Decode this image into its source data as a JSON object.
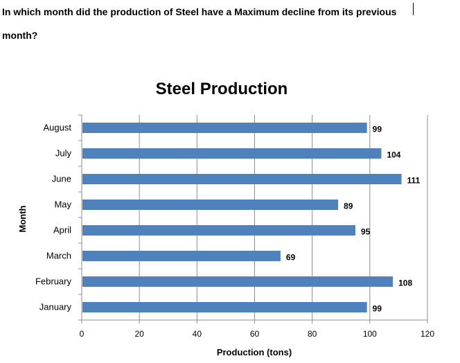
{
  "question": {
    "line1": "In which month did the production of Steel have a Maximum decline from its previous",
    "line2": "month?"
  },
  "chart_data": {
    "type": "bar",
    "orientation": "horizontal",
    "title": "Steel Production",
    "xlabel": "Production (tons)",
    "ylabel": "Month",
    "categories": [
      "January",
      "February",
      "March",
      "April",
      "May",
      "June",
      "July",
      "August"
    ],
    "values": [
      99,
      108,
      69,
      95,
      89,
      111,
      104,
      99
    ],
    "xlim": [
      0,
      120
    ],
    "xticks": [
      0,
      20,
      40,
      60,
      80,
      100,
      120
    ],
    "bar_color": "#4f81bd",
    "grid": true,
    "data_labels": true
  }
}
